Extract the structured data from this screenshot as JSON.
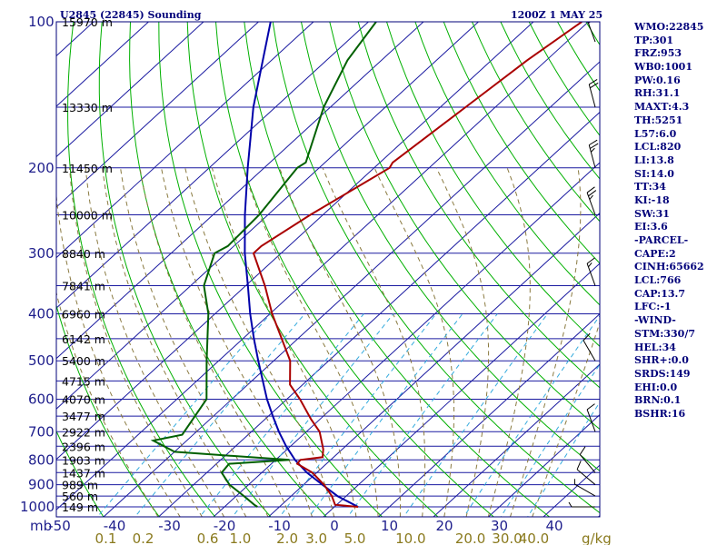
{
  "header": {
    "station": "U2845 (22845) Sounding",
    "time": "1200Z  1 MAY 25"
  },
  "unit_label": "mb",
  "mixing_unit": "g/kg",
  "indices": [
    "WMO:22845",
    "TP:301",
    "FRZ:953",
    "WB0:1001",
    "PW:0.16",
    "RH:31.1",
    "MAXT:4.3",
    "TH:5251",
    "L57:6.0",
    "LCL:820",
    "LI:13.8",
    "SI:14.0",
    "TT:34",
    "KI:-18",
    "SW:31",
    "EI:3.6",
    "-PARCEL-",
    "CAPE:2",
    "CINH:65662",
    "LCL:766",
    "CAP:13.7",
    "LFC:-1",
    "-WIND-",
    "STM:330/7",
    "HEL:34",
    "SHR+:0.0",
    "SRDS:149",
    "EHI:0.0",
    "BRN:0.1",
    "BSHR:16"
  ],
  "colors": {
    "frame": "#00007a",
    "isobar": "#1a1aa0",
    "isotherm": "#1a1aa0",
    "dry_adiabat": "#00b000",
    "moist_adiabat": "#8a7a40",
    "mixing_ratio": "#33aadd",
    "temperature": "#aa0000",
    "dewpoint": "#006000",
    "parcel": "#0000aa",
    "wind": "#000000"
  },
  "chart_data": {
    "type": "skew-t",
    "title": "U2845 (22845) Sounding",
    "pressure_levels": [
      {
        "p": 100,
        "label": "100",
        "height": "15970 m"
      },
      {
        "p": 150,
        "label": "",
        "height": "13330 m"
      },
      {
        "p": 200,
        "label": "200",
        "height": "11450 m"
      },
      {
        "p": 250,
        "label": "",
        "height": "10000 m"
      },
      {
        "p": 300,
        "label": "300",
        "height": "8840 m"
      },
      {
        "p": 350,
        "label": "",
        "height": "7841 m"
      },
      {
        "p": 400,
        "label": "400",
        "height": "6960 m"
      },
      {
        "p": 450,
        "label": "",
        "height": "6142 m"
      },
      {
        "p": 500,
        "label": "500",
        "height": "5400 m"
      },
      {
        "p": 550,
        "label": "",
        "height": "4715 m"
      },
      {
        "p": 600,
        "label": "600",
        "height": "4070 m"
      },
      {
        "p": 650,
        "label": "",
        "height": "3477 m"
      },
      {
        "p": 700,
        "label": "700",
        "height": "2922 m"
      },
      {
        "p": 750,
        "label": "",
        "height": "2396 m"
      },
      {
        "p": 800,
        "label": "800",
        "height": "1903 m"
      },
      {
        "p": 850,
        "label": "",
        "height": "1437 m"
      },
      {
        "p": 900,
        "label": "900",
        "height": "989 m"
      },
      {
        "p": 950,
        "label": "",
        "height": "560 m"
      },
      {
        "p": 1000,
        "label": "1000",
        "height": "149 m"
      }
    ],
    "temperature_ticks": [
      -50,
      -40,
      -30,
      -20,
      -10,
      0,
      10,
      20,
      30,
      40
    ],
    "mixing_ratio_ticks": [
      "0.1",
      "0.2",
      "0.6",
      "1.0",
      "2.0",
      "3.0",
      "5.0",
      "10.0",
      "20.0",
      "30.0",
      "40.0"
    ],
    "mixing_ratio_values": [
      0.1,
      0.2,
      0.6,
      1.0,
      2.0,
      3.0,
      5.0,
      10.0,
      20.0,
      30.0,
      40.0
    ],
    "temperature_profile": [
      {
        "p": 1000,
        "t": 4.3
      },
      {
        "p": 990,
        "t": -0.3
      },
      {
        "p": 950,
        "t": -2.6
      },
      {
        "p": 900,
        "t": -6.3
      },
      {
        "p": 850,
        "t": -10.8
      },
      {
        "p": 815,
        "t": -15.3
      },
      {
        "p": 800,
        "t": -15.5
      },
      {
        "p": 790,
        "t": -12.0
      },
      {
        "p": 760,
        "t": -13.5
      },
      {
        "p": 700,
        "t": -17.6
      },
      {
        "p": 660,
        "t": -21.6
      },
      {
        "p": 600,
        "t": -27.6
      },
      {
        "p": 560,
        "t": -32.3
      },
      {
        "p": 500,
        "t": -37.0
      },
      {
        "p": 400,
        "t": -49.6
      },
      {
        "p": 350,
        "t": -56.5
      },
      {
        "p": 300,
        "t": -65.0
      },
      {
        "p": 290,
        "t": -65.0
      },
      {
        "p": 250,
        "t": -62.3
      },
      {
        "p": 200,
        "t": -57.2
      },
      {
        "p": 195,
        "t": -57.7
      },
      {
        "p": 150,
        "t": -55.4
      },
      {
        "p": 120,
        "t": -53.5
      },
      {
        "p": 100,
        "t": -51.2
      }
    ],
    "dewpoint_profile": [
      {
        "p": 1000,
        "td": -14.0
      },
      {
        "p": 990,
        "td": -15.0
      },
      {
        "p": 950,
        "td": -18.6
      },
      {
        "p": 900,
        "td": -23.5
      },
      {
        "p": 850,
        "td": -27.3
      },
      {
        "p": 815,
        "td": -27.7
      },
      {
        "p": 800,
        "td": -17.5
      },
      {
        "p": 770,
        "td": -40.0
      },
      {
        "p": 730,
        "td": -46.1
      },
      {
        "p": 710,
        "td": -42.0
      },
      {
        "p": 600,
        "td": -44.6
      },
      {
        "p": 500,
        "td": -52.2
      },
      {
        "p": 400,
        "td": -61.2
      },
      {
        "p": 350,
        "td": -67.6
      },
      {
        "p": 300,
        "td": -72.1
      },
      {
        "p": 290,
        "td": -71.1
      },
      {
        "p": 250,
        "td": -71.6
      },
      {
        "p": 200,
        "td": -74.0
      },
      {
        "p": 195,
        "td": -73.5
      },
      {
        "p": 150,
        "td": -81.2
      },
      {
        "p": 120,
        "td": -86.2
      },
      {
        "p": 100,
        "td": -88.6
      }
    ],
    "parcel_profile": [
      {
        "p": 1000,
        "t": 4.3
      },
      {
        "p": 950,
        "t": -1.6
      },
      {
        "p": 900,
        "t": -6.6
      },
      {
        "p": 850,
        "t": -11.8
      },
      {
        "p": 800,
        "t": -16.5
      },
      {
        "p": 750,
        "t": -20.8
      },
      {
        "p": 700,
        "t": -25.0
      },
      {
        "p": 650,
        "t": -29.2
      },
      {
        "p": 600,
        "t": -33.6
      },
      {
        "p": 550,
        "t": -38.0
      },
      {
        "p": 500,
        "t": -42.8
      },
      {
        "p": 450,
        "t": -48.0
      },
      {
        "p": 400,
        "t": -53.6
      },
      {
        "p": 350,
        "t": -59.6
      },
      {
        "p": 300,
        "t": -66.6
      },
      {
        "p": 250,
        "t": -74.2
      },
      {
        "p": 200,
        "t": -83.0
      },
      {
        "p": 150,
        "t": -94.0
      },
      {
        "p": 120,
        "t": -101.6
      },
      {
        "p": 100,
        "t": -107.8
      }
    ],
    "wind_barbs": [
      {
        "p": 1000,
        "dir": 270,
        "spd": 5
      },
      {
        "p": 950,
        "dir": 300,
        "spd": 5
      },
      {
        "p": 900,
        "dir": 310,
        "spd": 10
      },
      {
        "p": 850,
        "dir": 320,
        "spd": 10
      },
      {
        "p": 700,
        "dir": 340,
        "spd": 10
      },
      {
        "p": 500,
        "dir": 330,
        "spd": 10
      },
      {
        "p": 350,
        "dir": 340,
        "spd": 15
      },
      {
        "p": 250,
        "dir": 340,
        "spd": 25
      },
      {
        "p": 200,
        "dir": 345,
        "spd": 25
      },
      {
        "p": 150,
        "dir": 345,
        "spd": 20
      },
      {
        "p": 110,
        "dir": 340,
        "spd": 20
      }
    ]
  }
}
